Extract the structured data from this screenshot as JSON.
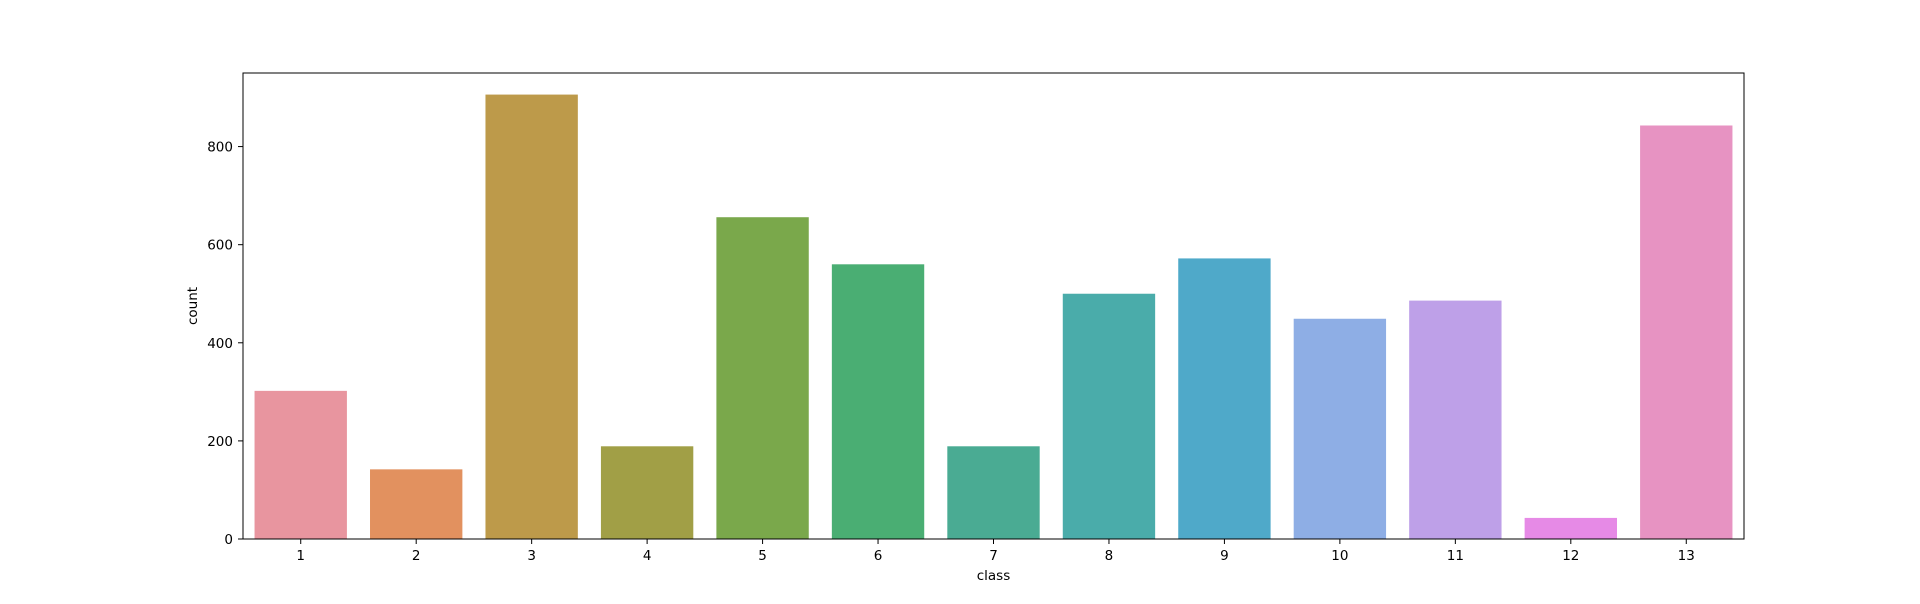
{
  "chart_data": {
    "type": "bar",
    "title": "",
    "xlabel": "class",
    "ylabel": "count",
    "categories": [
      "1",
      "2",
      "3",
      "4",
      "5",
      "6",
      "7",
      "8",
      "9",
      "10",
      "11",
      "12",
      "13"
    ],
    "values": [
      302,
      142,
      906,
      189,
      656,
      560,
      189,
      500,
      572,
      449,
      486,
      43,
      843
    ],
    "colors": [
      "#e8959f",
      "#e2915f",
      "#bd9a4a",
      "#a19f46",
      "#7aa84b",
      "#4aae73",
      "#4aab93",
      "#4aacaa",
      "#4fa9c9",
      "#8eaee5",
      "#bea0e8",
      "#e68ae6",
      "#e793c2"
    ],
    "ylim": [
      0,
      950
    ],
    "yticks": [
      0,
      200,
      400,
      600,
      800
    ],
    "grid": false,
    "legend": "none"
  }
}
